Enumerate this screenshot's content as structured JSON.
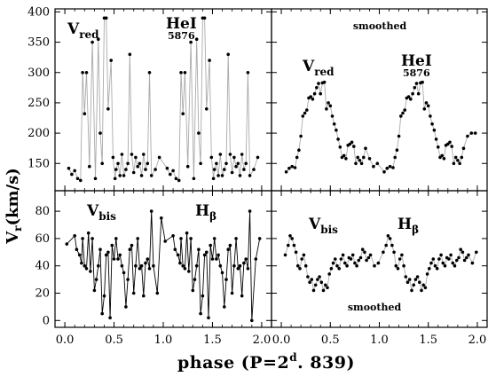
{
  "figure": {
    "ylabel_main": "V",
    "ylabel_sub": "r",
    "ylabel_unit": "(km/s)",
    "xlabel_pre": "phase (P=2",
    "xlabel_sup": "d",
    "xlabel_post": ". 839)"
  },
  "chart_data": [
    {
      "type": "line",
      "panel": "top-left",
      "annotations": [
        {
          "main": "V",
          "sub": "red"
        },
        {
          "main": "HeI",
          "below": "5876"
        }
      ],
      "xlim": [
        -0.1,
        2.1
      ],
      "ylim": [
        105,
        405
      ],
      "xticks": [
        0.0,
        0.5,
        1.0,
        1.5,
        2.0
      ],
      "xtick_labels_shown": false,
      "yticks": [
        150,
        200,
        250,
        300,
        350,
        400
      ],
      "ytick_labels": [
        "150",
        "200",
        "250",
        "300",
        "350",
        "400"
      ],
      "markers": "points",
      "line_color": "#aaaaaa",
      "x": [
        0.04,
        0.07,
        0.1,
        0.13,
        0.16,
        0.18,
        0.2,
        0.22,
        0.25,
        0.28,
        0.31,
        0.34,
        0.36,
        0.38,
        0.4,
        0.42,
        0.44,
        0.47,
        0.49,
        0.51,
        0.52,
        0.54,
        0.56,
        0.58,
        0.6,
        0.62,
        0.64,
        0.66,
        0.68,
        0.7,
        0.72,
        0.74,
        0.76,
        0.78,
        0.8,
        0.82,
        0.84,
        0.86,
        0.88,
        0.92,
        0.96,
        1.04,
        1.07,
        1.1,
        1.13,
        1.16,
        1.18,
        1.2,
        1.22,
        1.25,
        1.28,
        1.31,
        1.34,
        1.36,
        1.38,
        1.4,
        1.42,
        1.44,
        1.47,
        1.49,
        1.51,
        1.52,
        1.54,
        1.56,
        1.58,
        1.6,
        1.62,
        1.64,
        1.66,
        1.68,
        1.7,
        1.72,
        1.74,
        1.76,
        1.78,
        1.8,
        1.82,
        1.84,
        1.86,
        1.88,
        1.92,
        1.96
      ],
      "y": [
        142,
        132,
        138,
        125,
        122,
        300,
        232,
        300,
        145,
        350,
        125,
        355,
        200,
        150,
        390,
        390,
        240,
        320,
        160,
        125,
        140,
        150,
        130,
        165,
        130,
        140,
        150,
        330,
        165,
        135,
        160,
        145,
        150,
        130,
        165,
        140,
        150,
        300,
        130,
        140,
        160,
        142,
        132,
        138,
        125,
        122,
        300,
        232,
        300,
        145,
        350,
        125,
        355,
        200,
        150,
        390,
        390,
        240,
        320,
        160,
        125,
        140,
        150,
        130,
        165,
        130,
        140,
        150,
        330,
        165,
        135,
        160,
        145,
        150,
        130,
        165,
        140,
        150,
        300,
        130,
        140,
        160
      ]
    },
    {
      "type": "line",
      "panel": "top-right",
      "title": "smoothed",
      "annotations": [
        {
          "main": "V",
          "sub": "red"
        },
        {
          "main": "HeI",
          "below": "5876"
        }
      ],
      "xlim": [
        -0.1,
        2.1
      ],
      "ylim": [
        105,
        405
      ],
      "xticks": [
        0.0,
        0.5,
        1.0,
        1.5,
        2.0
      ],
      "xtick_labels_shown": false,
      "yticks": [
        150,
        200,
        250,
        300,
        350,
        400
      ],
      "ytick_labels_shown": false,
      "markers": "points",
      "line_color": "#aaaaaa",
      "x": [
        0.05,
        0.08,
        0.11,
        0.14,
        0.16,
        0.18,
        0.2,
        0.22,
        0.24,
        0.26,
        0.28,
        0.3,
        0.32,
        0.34,
        0.36,
        0.38,
        0.4,
        0.42,
        0.44,
        0.46,
        0.48,
        0.5,
        0.52,
        0.54,
        0.56,
        0.58,
        0.6,
        0.62,
        0.64,
        0.66,
        0.68,
        0.7,
        0.72,
        0.74,
        0.76,
        0.78,
        0.8,
        0.82,
        0.84,
        0.86,
        0.9,
        0.94,
        0.98,
        1.05,
        1.08,
        1.11,
        1.14,
        1.16,
        1.18,
        1.2,
        1.22,
        1.24,
        1.26,
        1.28,
        1.3,
        1.32,
        1.34,
        1.36,
        1.38,
        1.4,
        1.42,
        1.44,
        1.46,
        1.48,
        1.5,
        1.52,
        1.54,
        1.56,
        1.58,
        1.6,
        1.62,
        1.64,
        1.66,
        1.68,
        1.7,
        1.72,
        1.74,
        1.76,
        1.78,
        1.8,
        1.82,
        1.84,
        1.86,
        1.9,
        1.94,
        1.98
      ],
      "y": [
        136,
        142,
        145,
        143,
        160,
        172,
        195,
        228,
        233,
        238,
        258,
        260,
        256,
        265,
        275,
        282,
        265,
        283,
        284,
        240,
        250,
        245,
        228,
        215,
        205,
        190,
        177,
        160,
        163,
        158,
        180,
        182,
        185,
        178,
        150,
        160,
        155,
        150,
        160,
        175,
        158,
        145,
        150,
        136,
        142,
        145,
        143,
        160,
        172,
        195,
        228,
        233,
        238,
        258,
        260,
        256,
        265,
        275,
        282,
        265,
        283,
        284,
        240,
        250,
        245,
        228,
        215,
        205,
        190,
        177,
        160,
        163,
        158,
        180,
        182,
        185,
        178,
        150,
        160,
        155,
        150,
        160,
        175,
        195,
        200,
        200
      ]
    },
    {
      "type": "line",
      "panel": "bottom-left",
      "annotations": [
        {
          "main": "V",
          "sub": "bis"
        },
        {
          "main": "H",
          "sub": "β"
        }
      ],
      "xlim": [
        -0.1,
        2.1
      ],
      "ylim": [
        -5,
        95
      ],
      "xticks": [
        0.0,
        0.5,
        1.0,
        1.5,
        2.0
      ],
      "xtick_labels": [
        "0.0",
        "0.5",
        "1.0",
        "1.5",
        "2.0"
      ],
      "yticks": [
        0,
        20,
        40,
        60,
        80
      ],
      "ytick_labels": [
        "0",
        "20",
        "40",
        "60",
        "80"
      ],
      "markers": "points",
      "line_color": "#000000",
      "x": [
        0.02,
        0.1,
        0.12,
        0.15,
        0.17,
        0.18,
        0.2,
        0.22,
        0.24,
        0.26,
        0.28,
        0.3,
        0.32,
        0.34,
        0.36,
        0.38,
        0.4,
        0.42,
        0.44,
        0.46,
        0.48,
        0.5,
        0.52,
        0.54,
        0.56,
        0.58,
        0.6,
        0.62,
        0.64,
        0.66,
        0.68,
        0.7,
        0.72,
        0.74,
        0.76,
        0.78,
        0.8,
        0.82,
        0.84,
        0.86,
        0.88,
        0.9,
        0.94,
        0.98,
        1.02,
        1.1,
        1.12,
        1.15,
        1.17,
        1.18,
        1.2,
        1.22,
        1.24,
        1.26,
        1.28,
        1.3,
        1.32,
        1.34,
        1.36,
        1.38,
        1.4,
        1.42,
        1.44,
        1.46,
        1.48,
        1.5,
        1.52,
        1.54,
        1.56,
        1.58,
        1.6,
        1.62,
        1.64,
        1.66,
        1.68,
        1.7,
        1.72,
        1.74,
        1.76,
        1.78,
        1.8,
        1.82,
        1.84,
        1.86,
        1.88,
        1.9,
        1.94,
        1.98
      ],
      "y": [
        56,
        62,
        52,
        48,
        42,
        60,
        40,
        38,
        64,
        36,
        60,
        22,
        30,
        40,
        52,
        5,
        18,
        48,
        50,
        2,
        55,
        45,
        60,
        45,
        48,
        40,
        35,
        10,
        30,
        52,
        55,
        20,
        40,
        60,
        38,
        40,
        18,
        42,
        45,
        38,
        80,
        40,
        20,
        75,
        58,
        62,
        52,
        48,
        42,
        60,
        40,
        38,
        64,
        36,
        60,
        22,
        30,
        40,
        52,
        5,
        18,
        48,
        50,
        2,
        55,
        45,
        60,
        45,
        48,
        40,
        35,
        10,
        30,
        52,
        55,
        20,
        40,
        60,
        38,
        40,
        18,
        42,
        45,
        38,
        80,
        0,
        45,
        60
      ]
    },
    {
      "type": "line",
      "panel": "bottom-right",
      "title": "smoothed",
      "annotations": [
        {
          "main": "V",
          "sub": "bis"
        },
        {
          "main": "H",
          "sub": "β"
        }
      ],
      "xlim": [
        -0.1,
        2.1
      ],
      "ylim": [
        -5,
        95
      ],
      "xticks": [
        0.0,
        0.5,
        1.0,
        1.5,
        2.0
      ],
      "xtick_labels": [
        "0.0",
        "0.5",
        "1.0",
        "1.5",
        "2.0"
      ],
      "yticks": [
        0,
        20,
        40,
        60,
        80
      ],
      "ytick_labels_shown": false,
      "markers": "points",
      "line_color": "#aaaaaa",
      "x": [
        0.04,
        0.07,
        0.09,
        0.11,
        0.13,
        0.15,
        0.17,
        0.19,
        0.21,
        0.23,
        0.25,
        0.27,
        0.29,
        0.31,
        0.33,
        0.35,
        0.37,
        0.39,
        0.41,
        0.43,
        0.45,
        0.47,
        0.49,
        0.51,
        0.53,
        0.55,
        0.57,
        0.59,
        0.61,
        0.63,
        0.65,
        0.67,
        0.69,
        0.71,
        0.73,
        0.75,
        0.77,
        0.79,
        0.81,
        0.83,
        0.85,
        0.87,
        0.89,
        0.91,
        0.95,
        0.99,
        1.04,
        1.07,
        1.09,
        1.11,
        1.13,
        1.15,
        1.17,
        1.19,
        1.21,
        1.23,
        1.25,
        1.27,
        1.29,
        1.31,
        1.33,
        1.35,
        1.37,
        1.39,
        1.41,
        1.43,
        1.45,
        1.47,
        1.49,
        1.51,
        1.53,
        1.55,
        1.57,
        1.59,
        1.61,
        1.63,
        1.65,
        1.67,
        1.69,
        1.71,
        1.73,
        1.75,
        1.77,
        1.79,
        1.81,
        1.83,
        1.85,
        1.87,
        1.89,
        1.91,
        1.95,
        1.99
      ],
      "y": [
        48,
        55,
        62,
        60,
        55,
        50,
        40,
        38,
        45,
        48,
        40,
        32,
        28,
        30,
        22,
        26,
        30,
        32,
        28,
        22,
        26,
        24,
        34,
        38,
        42,
        45,
        40,
        38,
        45,
        48,
        42,
        40,
        46,
        45,
        48,
        42,
        40,
        44,
        46,
        52,
        50,
        44,
        46,
        48,
        40,
        42,
        50,
        55,
        62,
        60,
        55,
        50,
        40,
        38,
        45,
        48,
        40,
        32,
        28,
        30,
        22,
        26,
        30,
        32,
        28,
        22,
        26,
        24,
        34,
        38,
        42,
        45,
        40,
        38,
        45,
        48,
        42,
        40,
        46,
        45,
        48,
        42,
        40,
        44,
        46,
        52,
        50,
        44,
        46,
        48,
        42,
        50
      ]
    }
  ]
}
